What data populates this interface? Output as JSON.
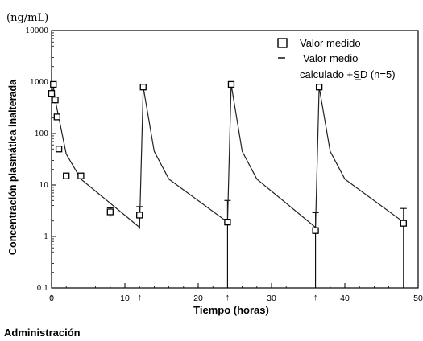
{
  "chart_data": {
    "type": "line",
    "unit_label": "(ng/mL)",
    "ylabel": "Concentración plasmática inalterada",
    "xlabel": "Tiempo (horas)",
    "footer_label": "Administración",
    "y_scale": "log",
    "ylim": [
      0.1,
      10000
    ],
    "xlim": [
      0,
      50
    ],
    "x_ticks": [
      "0",
      "10",
      "20",
      "30",
      "40",
      "50"
    ],
    "y_ticks": [
      "0.1",
      "1",
      "10",
      "100",
      "1000",
      "10000"
    ],
    "grid": false,
    "legend_position": "top-right",
    "legend": {
      "measured": "Valor medido",
      "mean_line1": "Valor medio",
      "mean_line2": "calculado",
      "mean_sd": "SD",
      "mean_suffix": " (n=5)"
    },
    "dosing_times_h": [
      0,
      12,
      24,
      36
    ],
    "dose_marker": "↑",
    "series": [
      {
        "name": "Valor medido",
        "style": "open-square",
        "x": [
          0.0,
          0.25,
          0.5,
          0.75,
          1.0,
          2.0,
          4.0,
          8.0,
          12.0,
          12.5,
          24.0,
          24.5,
          36.0,
          36.5,
          48.0
        ],
        "y": [
          600,
          900,
          450,
          210,
          50,
          15,
          15,
          3.0,
          2.6,
          800,
          1.9,
          900,
          1.3,
          800,
          1.8
        ]
      },
      {
        "name": "Valor medio calculado ±SD (n=5)",
        "style": "line",
        "x": [
          0,
          0.25,
          0.5,
          1.0,
          2.0,
          4.0,
          12.0,
          12.5,
          14.0,
          16.0,
          24.0,
          24.5,
          26.0,
          28.0,
          36.0,
          36.5,
          38.0,
          40.0,
          48.0
        ],
        "y": [
          400,
          800,
          450,
          200,
          40,
          13,
          1.5,
          800,
          45,
          13,
          1.9,
          900,
          45,
          13,
          1.5,
          800,
          45,
          13,
          1.9
        ]
      }
    ],
    "error_bars": [
      {
        "x": 8.0,
        "low": 2.4,
        "high": 3.6
      },
      {
        "x": 12.0,
        "low": 1.4,
        "high": 3.8
      },
      {
        "x": 24.0,
        "low": 0.1,
        "high": 5.0
      },
      {
        "x": 36.0,
        "low": 0.1,
        "high": 2.9
      },
      {
        "x": 48.0,
        "low": 0.1,
        "high": 3.5
      }
    ]
  }
}
